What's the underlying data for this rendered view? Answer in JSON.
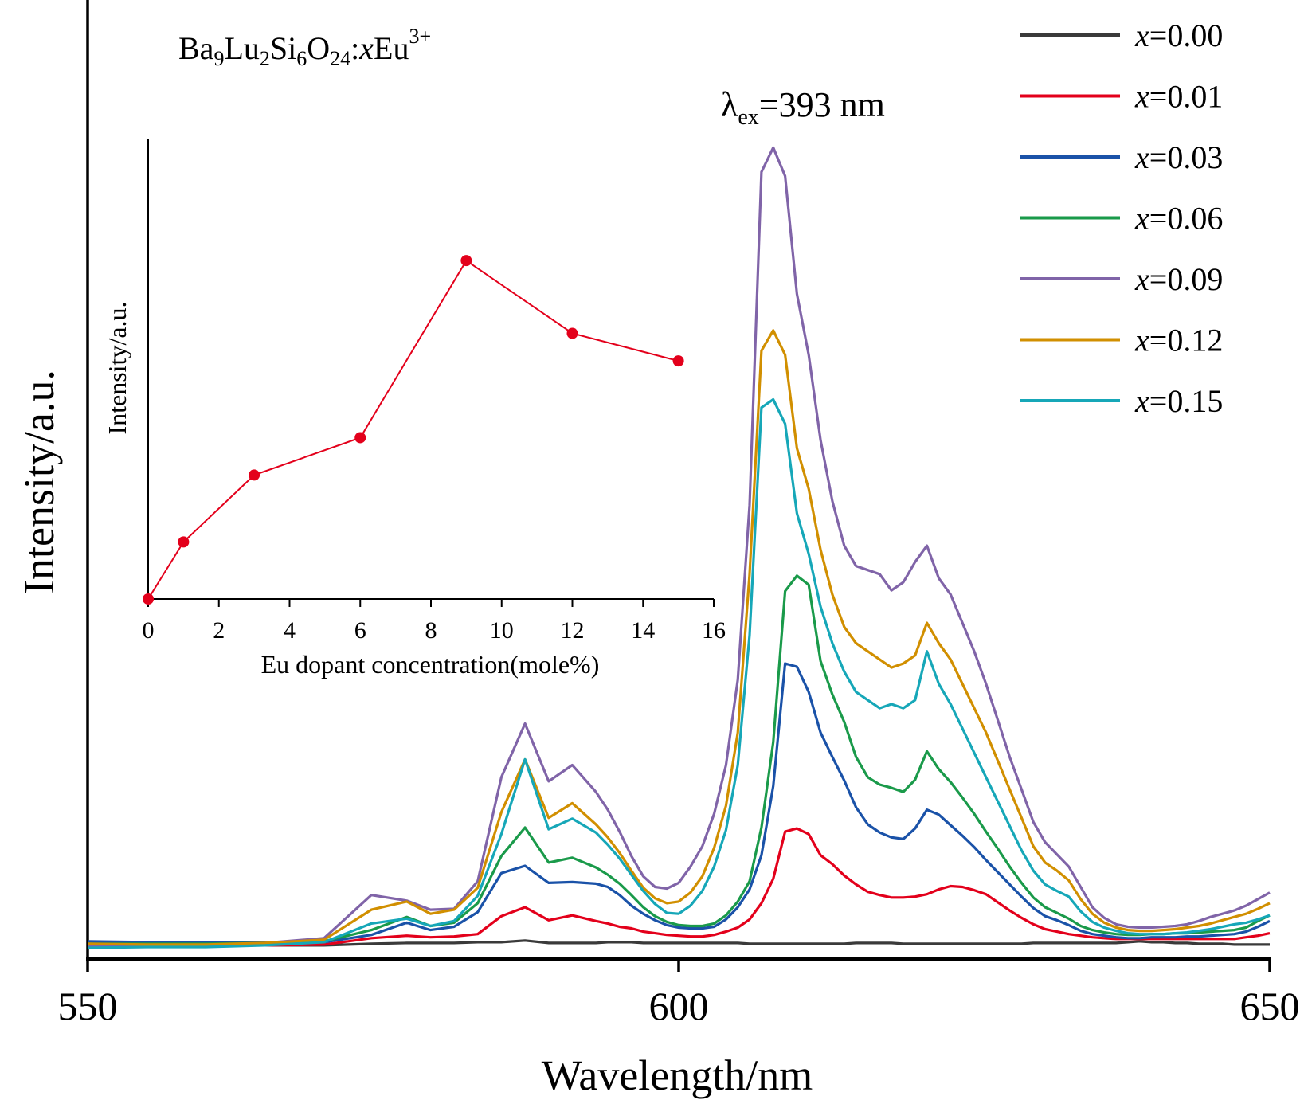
{
  "chart_data": [
    {
      "type": "line",
      "title": "",
      "sample_label": {
        "formula_parts": [
          {
            "text": "Ba",
            "style": "normal"
          },
          {
            "text": "9",
            "style": "sub"
          },
          {
            "text": "Lu",
            "style": "normal"
          },
          {
            "text": "2",
            "style": "sub"
          },
          {
            "text": "Si",
            "style": "normal"
          },
          {
            "text": "6",
            "style": "sub"
          },
          {
            "text": "O",
            "style": "normal"
          },
          {
            "text": "24",
            "style": "sub"
          },
          {
            "text": ":",
            "style": "normal"
          },
          {
            "text": "x",
            "style": "italic"
          },
          {
            "text": "Eu",
            "style": "normal"
          },
          {
            "text": "3+",
            "style": "sup"
          }
        ]
      },
      "excitation_label": {
        "symbol": "λ",
        "sub": "ex",
        "rest": "=393 nm"
      },
      "xlabel": "Wavelength/nm",
      "ylabel": "Intensity/a.u.",
      "xlim": [
        550,
        650
      ],
      "ylim": [
        0,
        100
      ],
      "xticks": [
        "550",
        "600",
        "650"
      ],
      "yticks": [],
      "grid": false,
      "legend_position": "top-right",
      "x": [
        550,
        555,
        560,
        565,
        570,
        574,
        577,
        579,
        581,
        583,
        585,
        587,
        589,
        591,
        593,
        594,
        595,
        596,
        597,
        598,
        599,
        600,
        601,
        602,
        603,
        604,
        605,
        606,
        607,
        608,
        609,
        610,
        611,
        612,
        613,
        614,
        615,
        616,
        617,
        618,
        619,
        620,
        621,
        622,
        623,
        624,
        625,
        626,
        627,
        628,
        629,
        630,
        631,
        632,
        633,
        634,
        635,
        636,
        637,
        638,
        639,
        640,
        641,
        642,
        643,
        644,
        645,
        646,
        647,
        648,
        649,
        650
      ],
      "series": [
        {
          "name": "x=0.00",
          "color": "#3a3a3a",
          "values": [
            0.3,
            0.3,
            0.3,
            0.3,
            0.3,
            0.5,
            0.6,
            0.6,
            0.6,
            0.7,
            0.7,
            0.9,
            0.6,
            0.6,
            0.6,
            0.7,
            0.7,
            0.7,
            0.6,
            0.6,
            0.6,
            0.6,
            0.6,
            0.6,
            0.6,
            0.6,
            0.6,
            0.5,
            0.5,
            0.5,
            0.5,
            0.5,
            0.5,
            0.5,
            0.5,
            0.5,
            0.6,
            0.6,
            0.6,
            0.6,
            0.5,
            0.5,
            0.5,
            0.5,
            0.5,
            0.5,
            0.5,
            0.5,
            0.5,
            0.5,
            0.5,
            0.6,
            0.6,
            0.6,
            0.6,
            0.6,
            0.6,
            0.6,
            0.6,
            0.7,
            0.8,
            0.7,
            0.7,
            0.6,
            0.6,
            0.5,
            0.5,
            0.5,
            0.4,
            0.4,
            0.4,
            0.4
          ]
        },
        {
          "name": "x=0.01",
          "color": "#e3001b",
          "values": [
            0.3,
            0.3,
            0.3,
            0.3,
            0.4,
            1.2,
            1.5,
            1.3,
            1.4,
            1.7,
            3.9,
            5.0,
            3.4,
            4.0,
            3.3,
            3.0,
            2.6,
            2.4,
            2.0,
            1.8,
            1.6,
            1.5,
            1.4,
            1.4,
            1.6,
            2.0,
            2.5,
            3.5,
            5.5,
            8.5,
            14.3,
            14.7,
            14.0,
            11.4,
            10.3,
            8.9,
            7.8,
            6.9,
            6.5,
            6.2,
            6.2,
            6.3,
            6.6,
            7.2,
            7.6,
            7.5,
            7.1,
            6.6,
            5.6,
            4.6,
            3.7,
            2.9,
            2.3,
            2.0,
            1.7,
            1.5,
            1.3,
            1.2,
            1.1,
            1.1,
            1.1,
            1.1,
            1.1,
            1.1,
            1.1,
            1.1,
            1.1,
            1.1,
            1.1,
            1.3,
            1.5,
            1.8
          ]
        },
        {
          "name": "x=0.03",
          "color": "#1a52a8",
          "values": [
            0.8,
            0.7,
            0.7,
            0.7,
            0.7,
            1.6,
            3.1,
            2.2,
            2.6,
            4.4,
            9.2,
            10.1,
            8.0,
            8.1,
            7.9,
            7.5,
            6.5,
            5.2,
            4.2,
            3.4,
            2.8,
            2.5,
            2.4,
            2.4,
            2.6,
            3.5,
            5.0,
            7.2,
            11.4,
            19.9,
            35.0,
            34.6,
            31.5,
            26.5,
            23.5,
            20.6,
            17.3,
            15.2,
            14.2,
            13.6,
            13.4,
            14.7,
            17.0,
            16.4,
            15.1,
            13.8,
            12.4,
            10.8,
            9.3,
            7.8,
            6.3,
            4.9,
            3.9,
            3.4,
            2.8,
            2.1,
            1.7,
            1.5,
            1.3,
            1.2,
            1.2,
            1.3,
            1.3,
            1.3,
            1.4,
            1.4,
            1.5,
            1.6,
            1.7,
            2.0,
            2.6,
            3.3
          ]
        },
        {
          "name": "x=0.06",
          "color": "#1a9a4a",
          "values": [
            0.5,
            0.5,
            0.5,
            0.6,
            0.8,
            2.2,
            3.8,
            2.7,
            3.1,
            5.5,
            11.3,
            14.8,
            10.5,
            11.1,
            9.9,
            9.0,
            7.9,
            6.5,
            5.0,
            3.9,
            3.2,
            2.8,
            2.7,
            2.7,
            3.0,
            4.0,
            5.7,
            8.2,
            14.8,
            25.3,
            43.9,
            45.8,
            44.7,
            35.3,
            31.2,
            27.8,
            23.5,
            21.0,
            20.1,
            19.7,
            19.2,
            20.7,
            24.2,
            22.0,
            20.4,
            18.5,
            16.5,
            14.3,
            12.2,
            10.0,
            8.0,
            6.2,
            5.0,
            4.3,
            3.6,
            2.7,
            2.2,
            1.9,
            1.7,
            1.6,
            1.6,
            1.7,
            1.7,
            1.8,
            1.8,
            1.9,
            2.0,
            2.1,
            2.2,
            2.5,
            3.3,
            4.0
          ]
        },
        {
          "name": "x=0.09",
          "color": "#8064a8",
          "values": [
            0.3,
            0.3,
            0.3,
            0.6,
            1.2,
            6.5,
            5.8,
            4.7,
            4.8,
            8.2,
            21.0,
            27.6,
            20.5,
            22.5,
            19.2,
            17.0,
            14.3,
            11.3,
            8.8,
            7.5,
            7.3,
            8.0,
            10.0,
            12.5,
            16.5,
            22.5,
            33.0,
            54.5,
            95.5,
            98.5,
            95.0,
            80.5,
            73.0,
            62.5,
            55.0,
            49.5,
            47.0,
            46.5,
            46.0,
            44.0,
            45.0,
            47.5,
            49.5,
            45.5,
            43.5,
            40.0,
            36.5,
            32.5,
            28.0,
            23.5,
            19.5,
            15.5,
            13.0,
            11.5,
            10.0,
            7.5,
            5.0,
            3.7,
            2.9,
            2.6,
            2.5,
            2.5,
            2.6,
            2.7,
            2.9,
            3.3,
            3.8,
            4.2,
            4.6,
            5.2,
            6.0,
            6.8
          ]
        },
        {
          "name": "x=0.12",
          "color": "#d18f00",
          "values": [
            0.5,
            0.4,
            0.4,
            0.6,
            1.0,
            4.7,
            5.7,
            4.2,
            4.7,
            7.4,
            16.7,
            23.2,
            16.0,
            17.8,
            15.2,
            13.6,
            11.7,
            9.5,
            7.4,
            6.1,
            5.5,
            5.7,
            6.8,
            8.8,
            12.3,
            17.5,
            26.5,
            46.0,
            73.5,
            76.0,
            73.0,
            61.5,
            56.5,
            49.0,
            43.5,
            39.5,
            37.5,
            36.5,
            35.5,
            34.5,
            35.0,
            36.0,
            40.0,
            37.5,
            35.5,
            32.5,
            29.5,
            26.5,
            23.0,
            19.5,
            16.0,
            12.5,
            10.5,
            9.5,
            8.3,
            6.0,
            4.2,
            3.1,
            2.5,
            2.2,
            2.1,
            2.1,
            2.2,
            2.3,
            2.5,
            2.7,
            3.0,
            3.4,
            3.8,
            4.2,
            4.8,
            5.5
          ]
        },
        {
          "name": "x=0.15",
          "color": "#16a7b8",
          "values": [
            0.0,
            0.1,
            0.1,
            0.3,
            0.7,
            3.0,
            3.6,
            2.7,
            3.3,
            6.4,
            14.0,
            23.2,
            14.6,
            15.9,
            14.2,
            12.7,
            11.0,
            9.0,
            7.0,
            5.4,
            4.3,
            4.2,
            5.2,
            7.0,
            10.0,
            14.5,
            22.5,
            38.5,
            66.5,
            67.5,
            64.5,
            53.5,
            48.5,
            42.0,
            37.5,
            34.0,
            31.5,
            30.5,
            29.5,
            30.0,
            29.5,
            30.5,
            36.5,
            32.5,
            30.0,
            27.0,
            24.0,
            21.0,
            18.0,
            15.0,
            12.0,
            9.5,
            7.8,
            7.0,
            6.3,
            4.5,
            3.2,
            2.5,
            2.1,
            1.8,
            1.7,
            1.7,
            1.7,
            1.8,
            1.9,
            2.1,
            2.3,
            2.6,
            2.9,
            3.1,
            3.5,
            4.0
          ]
        }
      ]
    },
    {
      "type": "line",
      "title": "",
      "xlabel": "Eu dopant concentration(mole%)",
      "ylabel": "Intensity/a.u.",
      "xlim": [
        0,
        16
      ],
      "xticks": [
        "0",
        "2",
        "4",
        "6",
        "8",
        "10",
        "12",
        "14",
        "16"
      ],
      "ylim": [
        0,
        100
      ],
      "yticks": [],
      "grid": false,
      "color": "#e3001b",
      "x": [
        0,
        1,
        3,
        6,
        9,
        12,
        15
      ],
      "values": [
        0,
        14.5,
        31.5,
        41.0,
        86.0,
        67.5,
        60.5
      ]
    }
  ]
}
